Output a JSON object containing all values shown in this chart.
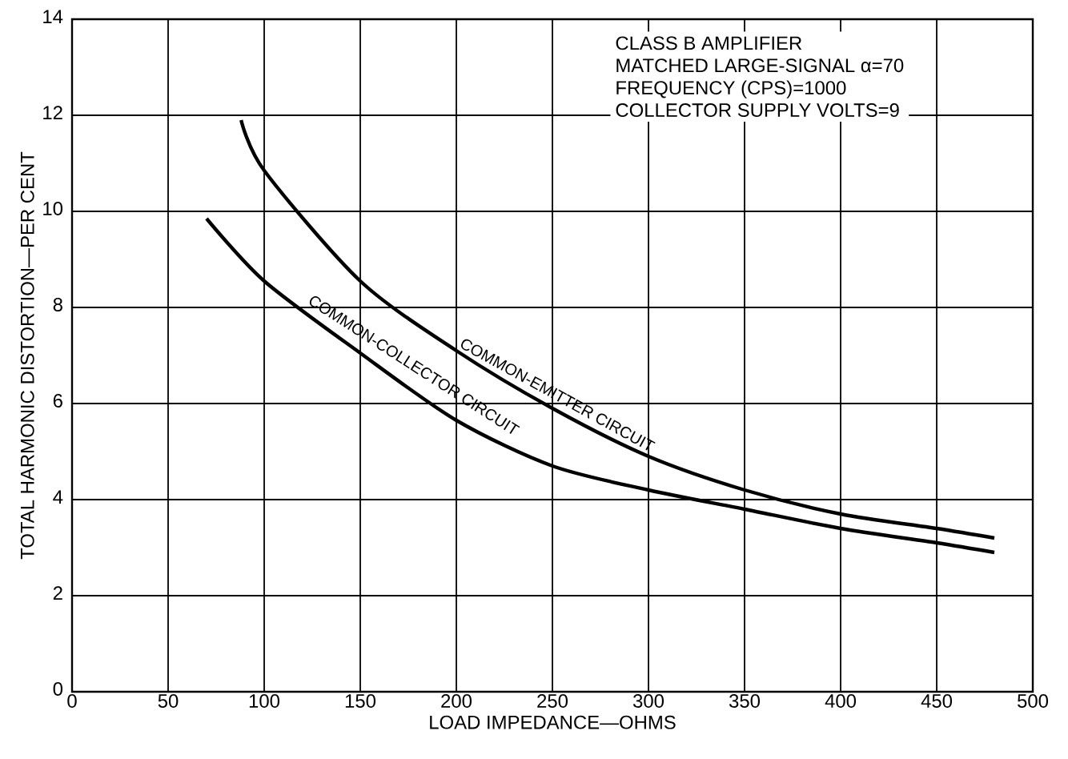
{
  "chart_data": {
    "type": "line",
    "xlabel": "LOAD IMPEDANCE—OHMS",
    "ylabel": "TOTAL HARMONIC DISTORTION—PER CENT",
    "xlim": [
      0,
      500
    ],
    "xticks": [
      0,
      50,
      100,
      150,
      200,
      250,
      300,
      350,
      400,
      450,
      500
    ],
    "ylim": [
      0,
      14
    ],
    "yticks": [
      0,
      2,
      4,
      6,
      8,
      10,
      12,
      14
    ],
    "grid": true,
    "legend": false,
    "marker": "none",
    "line_style": "solid",
    "annotations": [
      "CLASS B AMPLIFIER",
      "MATCHED LARGE-SIGNAL α=70",
      "FREQUENCY (CPS)=1000",
      "COLLECTOR SUPPLY VOLTS=9"
    ],
    "series": [
      {
        "name": "COMMON-EMITTER CIRCUIT",
        "color": "#000000",
        "x": [
          88,
          100,
          150,
          200,
          250,
          300,
          350,
          400,
          450,
          480
        ],
        "values": [
          11.9,
          10.85,
          8.55,
          7.1,
          5.9,
          4.9,
          4.2,
          3.7,
          3.4,
          3.2
        ]
      },
      {
        "name": "COMMON-COLLECTOR CIRCUIT",
        "color": "#000000",
        "x": [
          70,
          100,
          150,
          200,
          250,
          300,
          350,
          400,
          450,
          480
        ],
        "values": [
          9.85,
          8.55,
          7.05,
          5.65,
          4.7,
          4.2,
          3.8,
          3.4,
          3.1,
          2.9
        ]
      }
    ]
  }
}
